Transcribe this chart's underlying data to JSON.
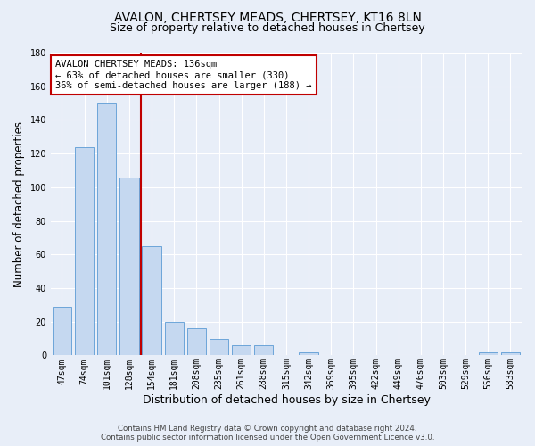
{
  "title": "AVALON, CHERTSEY MEADS, CHERTSEY, KT16 8LN",
  "subtitle": "Size of property relative to detached houses in Chertsey",
  "xlabel": "Distribution of detached houses by size in Chertsey",
  "ylabel": "Number of detached properties",
  "categories": [
    "47sqm",
    "74sqm",
    "101sqm",
    "128sqm",
    "154sqm",
    "181sqm",
    "208sqm",
    "235sqm",
    "261sqm",
    "288sqm",
    "315sqm",
    "342sqm",
    "369sqm",
    "395sqm",
    "422sqm",
    "449sqm",
    "476sqm",
    "503sqm",
    "529sqm",
    "556sqm",
    "583sqm"
  ],
  "values": [
    29,
    124,
    150,
    106,
    65,
    20,
    16,
    10,
    6,
    6,
    0,
    2,
    0,
    0,
    0,
    0,
    0,
    0,
    0,
    2,
    2
  ],
  "bar_color": "#c5d8f0",
  "bar_edge_color": "#5b9bd5",
  "highlight_index": 3,
  "highlight_color": "#c00000",
  "ylim": [
    0,
    180
  ],
  "yticks": [
    0,
    20,
    40,
    60,
    80,
    100,
    120,
    140,
    160,
    180
  ],
  "annotation_text": "AVALON CHERTSEY MEADS: 136sqm\n← 63% of detached houses are smaller (330)\n36% of semi-detached houses are larger (188) →",
  "annotation_box_color": "#ffffff",
  "annotation_box_edge": "#c00000",
  "footer_line1": "Contains HM Land Registry data © Crown copyright and database right 2024.",
  "footer_line2": "Contains public sector information licensed under the Open Government Licence v3.0.",
  "background_color": "#e8eef8",
  "grid_color": "#ffffff",
  "title_fontsize": 10,
  "subtitle_fontsize": 9,
  "tick_fontsize": 7,
  "ylabel_fontsize": 8.5,
  "xlabel_fontsize": 9,
  "annotation_fontsize": 7.5
}
